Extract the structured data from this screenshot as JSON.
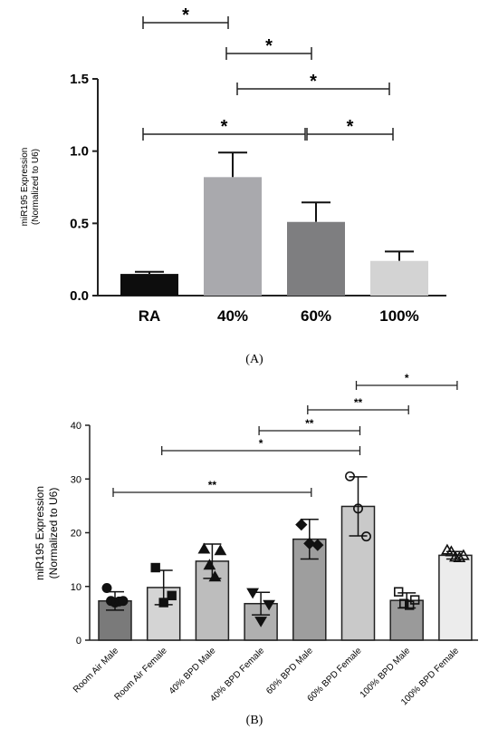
{
  "chart_data": [
    {
      "panel": "(A)",
      "type": "bar",
      "ylabel_lines": [
        "miR195 Expression",
        "(Normalized to U6)"
      ],
      "categories": [
        "RA",
        "40%",
        "60%",
        "100%"
      ],
      "values": [
        0.15,
        0.82,
        0.51,
        0.24
      ],
      "errors": [
        0.015,
        0.17,
        0.135,
        0.065
      ],
      "colors": [
        "#0d0d0d",
        "#a9a9ad",
        "#7e7e80",
        "#d3d3d3"
      ],
      "ylim": [
        0,
        1.5
      ],
      "yticks": [
        "0.0",
        "0.5",
        "1.0",
        "1.5"
      ],
      "significance": [
        {
          "from": 0,
          "to": 1,
          "label": "*"
        },
        {
          "from": 1,
          "to": 2,
          "label": "*"
        },
        {
          "from": 1,
          "to": 3,
          "label": "*"
        },
        {
          "from": 0,
          "to": 2,
          "label": "*"
        },
        {
          "from": 2,
          "to": 3,
          "label": "*"
        }
      ],
      "grid": false
    },
    {
      "panel": "(B)",
      "type": "bar",
      "ylabel_lines": [
        "miR195 Expression",
        "(Normalized to U6)"
      ],
      "categories": [
        "Room Air Male",
        "Room Air Female",
        "40% BPD Male",
        "40% BPD Female",
        "60% BPD Male",
        "60% BPD Female",
        "100% BPD Male",
        "100% BPD Female"
      ],
      "values": [
        7.3,
        9.8,
        14.7,
        6.8,
        18.8,
        24.9,
        7.4,
        15.8
      ],
      "errors": [
        1.7,
        3.2,
        3.2,
        2.1,
        3.7,
        5.5,
        1.4,
        0.7
      ],
      "colors": [
        "#7a7a7a",
        "#d4d4d4",
        "#bdbdbd",
        "#b0b0b0",
        "#9e9e9e",
        "#c9c9c9",
        "#9a9a9a",
        "#ececec"
      ],
      "points": [
        {
          "marker": "circle-filled",
          "y": [
            9.7,
            7.3,
            7.0,
            7.2,
            7.3
          ]
        },
        {
          "marker": "square-filled",
          "y": [
            13.5,
            7.0,
            8.3
          ]
        },
        {
          "marker": "triangle-filled",
          "y": [
            17.0,
            14.0,
            11.8,
            16.7
          ]
        },
        {
          "marker": "triangle-down-filled",
          "y": [
            8.8,
            3.5,
            6.6
          ]
        },
        {
          "marker": "diamond-filled",
          "y": [
            21.5,
            18.0,
            17.7
          ]
        },
        {
          "marker": "circle-open",
          "y": [
            30.5,
            24.5,
            19.3
          ]
        },
        {
          "marker": "square-open",
          "y": [
            9.0,
            6.8,
            6.5,
            7.5
          ]
        },
        {
          "marker": "triangle-open",
          "y": [
            16.8,
            16.5,
            15.5,
            15.4,
            15.8
          ]
        }
      ],
      "ylim": [
        0,
        40
      ],
      "yticks": [
        "0",
        "10",
        "20",
        "30",
        "40"
      ],
      "significance": [
        {
          "from": 0,
          "to": 4,
          "label": "**"
        },
        {
          "from": 1,
          "to": 5,
          "label": "*"
        },
        {
          "from": 3,
          "to": 5,
          "label": "**"
        },
        {
          "from": 4,
          "to": 6,
          "label": "**"
        },
        {
          "from": 5,
          "to": 7,
          "label": "*"
        }
      ],
      "grid": false
    }
  ]
}
